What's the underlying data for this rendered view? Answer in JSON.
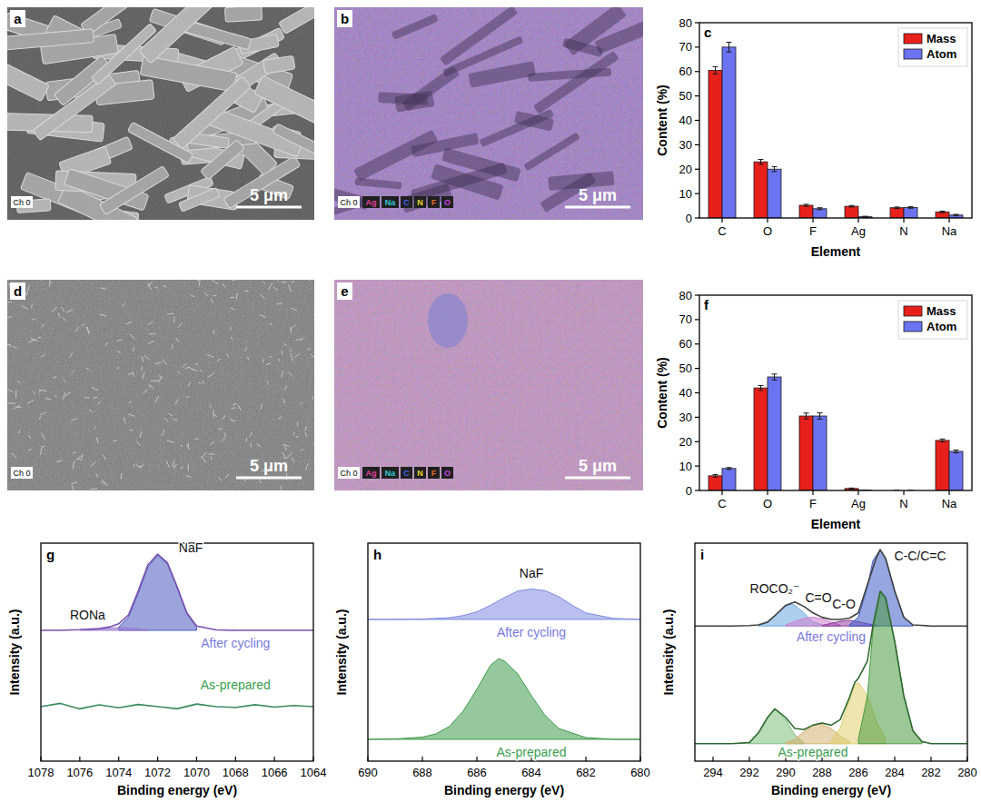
{
  "chart_data": [
    {
      "type": "image",
      "panel": "a",
      "channel": "Ch 0",
      "scale_bar": "5 μm"
    },
    {
      "type": "image",
      "panel": "b",
      "channel": "Ch 0",
      "scale_bar": "5 μm",
      "elements": [
        {
          "name": "Ag",
          "color": "#e0409a"
        },
        {
          "name": "Na",
          "color": "#30c8d8"
        },
        {
          "name": "C",
          "color": "#4060f0"
        },
        {
          "name": "N",
          "color": "#e8d820"
        },
        {
          "name": "F",
          "color": "#f06a20"
        },
        {
          "name": "O",
          "color": "#d040e0"
        }
      ]
    },
    {
      "type": "bar",
      "panel": "c",
      "x_label": "Element",
      "y_label": "Content (%)",
      "categories": [
        "C",
        "O",
        "F",
        "Ag",
        "N",
        "Na"
      ],
      "series": [
        {
          "name": "Mass",
          "color": "#e8201c",
          "values": [
            60.5,
            23,
            5.2,
            4.8,
            4.2,
            2.5
          ],
          "errors": [
            1.5,
            1,
            0.4,
            0.3,
            0.3,
            0.3
          ]
        },
        {
          "name": "Atom",
          "color": "#6b73f0",
          "values": [
            70,
            20,
            3.8,
            0.5,
            4.3,
            1.2
          ],
          "errors": [
            2,
            1,
            0.4,
            0.2,
            0.3,
            0.3
          ]
        }
      ],
      "ylim": [
        0,
        80
      ],
      "yticks": [
        0,
        10,
        20,
        30,
        40,
        50,
        60,
        70,
        80
      ],
      "legend": "top-right"
    },
    {
      "type": "image",
      "panel": "d",
      "channel": "Ch 0",
      "scale_bar": "5 μm"
    },
    {
      "type": "image",
      "panel": "e",
      "channel": "Ch 0",
      "scale_bar": "5 μm",
      "elements": [
        {
          "name": "Ag",
          "color": "#e0409a"
        },
        {
          "name": "Na",
          "color": "#30c8d8"
        },
        {
          "name": "C",
          "color": "#4060f0"
        },
        {
          "name": "N",
          "color": "#e8d820"
        },
        {
          "name": "F",
          "color": "#f06a20"
        },
        {
          "name": "O",
          "color": "#d040e0"
        }
      ]
    },
    {
      "type": "bar",
      "panel": "f",
      "x_label": "Element",
      "y_label": "Content (%)",
      "categories": [
        "C",
        "O",
        "F",
        "Ag",
        "N",
        "Na"
      ],
      "series": [
        {
          "name": "Mass",
          "color": "#e8201c",
          "values": [
            6,
            42,
            30.5,
            0.8,
            0,
            20.5
          ],
          "errors": [
            0.5,
            1,
            1.2,
            0.2,
            0,
            0.6
          ]
        },
        {
          "name": "Atom",
          "color": "#6b73f0",
          "values": [
            9,
            46.5,
            30.5,
            0.1,
            0,
            16
          ],
          "errors": [
            0.4,
            1.2,
            1.3,
            0.1,
            0,
            0.6
          ]
        }
      ],
      "ylim": [
        0,
        80
      ],
      "yticks": [
        0,
        10,
        20,
        30,
        40,
        50,
        60,
        70,
        80
      ],
      "legend": "top-right"
    },
    {
      "type": "line",
      "panel": "g",
      "x_label": "Binding energy (eV)",
      "y_label": "Intensity (a.u.)",
      "xlim": [
        1078,
        1064
      ],
      "xticks": [
        1078,
        1076,
        1074,
        1072,
        1070,
        1068,
        1066,
        1064
      ],
      "ylim": [
        0,
        100
      ],
      "yticks": [],
      "tick_labels": "x",
      "series": [
        {
          "type": "area",
          "color": "#4a5ac0",
          "base": 60,
          "x": [
            1074,
            1073.5,
            1073,
            1072.5,
            1072,
            1071.5,
            1071,
            1070.5,
            1070
          ],
          "values": [
            61.5,
            66,
            77,
            89,
            94.5,
            90.5,
            79.5,
            67.5,
            61.5
          ]
        },
        {
          "type": "area",
          "color": "#9a7ad0",
          "base": 60,
          "x": [
            1076,
            1075,
            1074.5,
            1074,
            1073.5,
            1073,
            1072.5
          ],
          "values": [
            60.2,
            60.6,
            61,
            61.3,
            61,
            60.6,
            60.2
          ]
        },
        {
          "type": "line",
          "color": "#7a4fb0",
          "x": [
            1078,
            1077,
            1076,
            1075,
            1074.5,
            1074,
            1073.5,
            1073,
            1072.5,
            1072,
            1071.5,
            1071,
            1070.5,
            1070,
            1069,
            1068,
            1067,
            1066,
            1065,
            1064
          ],
          "values": [
            60,
            60,
            60.3,
            60.8,
            61.5,
            63,
            67,
            78,
            90,
            95,
            91,
            80,
            68,
            62,
            60.2,
            60,
            60,
            60,
            60,
            60
          ]
        },
        {
          "type": "line",
          "color": "#3a8a60",
          "x": [
            1078,
            1077,
            1076,
            1075,
            1074,
            1073,
            1072,
            1071,
            1070,
            1069,
            1068,
            1067,
            1066,
            1065,
            1064
          ],
          "values": [
            25,
            26.5,
            24,
            25.8,
            24.5,
            26,
            25,
            24,
            26.2,
            25,
            24.6,
            25.9,
            24.8,
            25.5,
            25
          ]
        }
      ],
      "annotations": [
        {
          "text": "NaF",
          "x": 1070.3,
          "y": 96
        },
        {
          "text": "RONa",
          "x": 1075.6,
          "y": 65
        },
        {
          "text": "After cycling",
          "x": 1068,
          "y": 52,
          "color": "#7a7ae0"
        },
        {
          "text": "As-prepared",
          "x": 1068,
          "y": 33,
          "color": "#3aa050"
        }
      ]
    },
    {
      "type": "line",
      "panel": "h",
      "x_label": "Binding energy (eV)",
      "y_label": "Intensity (a.u.)",
      "xlim": [
        690,
        680
      ],
      "xticks": [
        690,
        688,
        686,
        684,
        682,
        680
      ],
      "ylim": [
        0,
        100
      ],
      "yticks": [],
      "tick_labels": "x",
      "series": [
        {
          "type": "area",
          "color": "#7f8be0",
          "base": 65,
          "x": [
            690,
            689,
            688,
            687,
            686.5,
            686,
            685.5,
            685,
            684.5,
            684,
            683.5,
            683,
            682.5,
            682,
            681,
            680
          ],
          "values": [
            65,
            65,
            65.2,
            65.8,
            66.8,
            68.5,
            71.5,
            75,
            78,
            79,
            78.2,
            75.5,
            71.5,
            68,
            65.5,
            65
          ]
        },
        {
          "type": "area",
          "color": "#3f9a4c",
          "base": 10,
          "x": [
            690,
            689,
            688,
            687.5,
            687,
            686.5,
            686,
            685.5,
            685.2,
            685,
            684.5,
            684,
            683.5,
            683,
            682,
            681,
            680
          ],
          "values": [
            10,
            10.2,
            11,
            12.5,
            16,
            23,
            33,
            44,
            47,
            46,
            40,
            30,
            21,
            15,
            10.8,
            10,
            10
          ]
        }
      ],
      "annotations": [
        {
          "text": "NaF",
          "x": 684,
          "y": 84
        },
        {
          "text": "After cycling",
          "x": 684,
          "y": 57,
          "color": "#7a7ae0"
        },
        {
          "text": "As-prepared",
          "x": 684,
          "y": 2,
          "color": "#3aa050"
        }
      ]
    },
    {
      "type": "line",
      "panel": "i",
      "x_label": "Binding energy (eV)",
      "y_label": "Intensity (a.u.)",
      "xlim": [
        295,
        280
      ],
      "xticks": [
        294,
        292,
        290,
        288,
        286,
        284,
        282,
        280
      ],
      "ylim": [
        0,
        100
      ],
      "yticks": [],
      "tick_labels": "x",
      "series": [
        {
          "type": "area",
          "color": "#6aa8e0",
          "base": 62,
          "x": [
            291.5,
            291,
            290.5,
            290,
            289.7,
            289.5,
            289,
            288.5,
            288
          ],
          "values": [
            62.3,
            63.5,
            67,
            71,
            72,
            71.5,
            68,
            64,
            62.5
          ]
        },
        {
          "type": "area",
          "color": "#d080d0",
          "base": 62,
          "x": [
            290,
            289.5,
            289,
            288.5,
            288,
            287.5,
            287
          ],
          "values": [
            62.5,
            64,
            65.5,
            66,
            65.3,
            63.8,
            62.5
          ]
        },
        {
          "type": "area",
          "color": "#9040a0",
          "base": 62,
          "x": [
            288,
            287.5,
            287,
            286.5,
            286,
            285.5,
            285
          ],
          "values": [
            62.3,
            63.2,
            64.2,
            64.5,
            64,
            63,
            62.3
          ]
        },
        {
          "type": "area",
          "color": "#3f5cc8",
          "base": 62,
          "x": [
            286.5,
            286,
            285.5,
            285.2,
            284.8,
            284.5,
            284,
            283.5,
            283
          ],
          "values": [
            62.5,
            66,
            80,
            92,
            97,
            93,
            78,
            66,
            62.5
          ]
        },
        {
          "type": "line",
          "color": "#404040",
          "x": [
            295,
            294,
            293,
            292,
            291.5,
            291,
            290.5,
            290,
            289.5,
            289,
            288.5,
            288,
            287.5,
            287,
            286.5,
            286,
            285.5,
            285,
            284.8,
            284.5,
            284,
            283.5,
            283,
            282,
            281,
            280
          ],
          "values": [
            62,
            62,
            62,
            62.2,
            62.5,
            63.8,
            67.5,
            71.5,
            73,
            71,
            68,
            66,
            65,
            65,
            65.5,
            68,
            81,
            93.5,
            97,
            93,
            78,
            66,
            62.5,
            62,
            62,
            62
          ]
        },
        {
          "type": "area",
          "color": "#7cc07c",
          "base": 8,
          "x": [
            292,
            291.5,
            291,
            290.6,
            290,
            289.5,
            289
          ],
          "values": [
            8.5,
            13,
            20,
            24,
            19,
            12,
            8.5
          ]
        },
        {
          "type": "area",
          "color": "#d4b070",
          "base": 8,
          "x": [
            290,
            289.5,
            289,
            288.5,
            288.2,
            288,
            287.5,
            287,
            286.5
          ],
          "values": [
            8.5,
            10,
            13.5,
            16.5,
            17,
            16.8,
            15,
            11.5,
            9
          ]
        },
        {
          "type": "area",
          "color": "#e0d070",
          "base": 8,
          "x": [
            287.5,
            287,
            286.5,
            286.2,
            286,
            285.5,
            285,
            284.5
          ],
          "values": [
            9,
            15,
            28,
            35,
            36,
            30,
            18,
            10
          ]
        },
        {
          "type": "area",
          "color": "#4a9a40",
          "base": 8,
          "x": [
            286,
            285.5,
            285.2,
            284.8,
            284.5,
            284,
            283.5,
            283,
            282.5
          ],
          "values": [
            10,
            30,
            60,
            77,
            74,
            55,
            30,
            14,
            9
          ]
        },
        {
          "type": "line",
          "color": "#2f6a30",
          "x": [
            295,
            294,
            293,
            292,
            291.5,
            291,
            290.6,
            290,
            289.5,
            289,
            288.5,
            288,
            287.5,
            287,
            286.5,
            286.2,
            286,
            285.5,
            285.2,
            284.8,
            284.5,
            284,
            283.5,
            283,
            282.5,
            282,
            281,
            280
          ],
          "values": [
            8,
            8,
            8,
            8.5,
            13,
            20,
            24,
            20,
            15,
            14.5,
            16.5,
            17.5,
            16.5,
            19,
            29,
            36,
            38,
            46,
            62,
            78,
            75,
            55,
            30,
            14,
            9,
            8,
            8,
            8
          ]
        }
      ],
      "annotations": [
        {
          "text": "ROCO₂⁻",
          "x": 290.6,
          "y": 77
        },
        {
          "text": "C=O",
          "x": 288.2,
          "y": 73
        },
        {
          "text": "C-O",
          "x": 286.8,
          "y": 70
        },
        {
          "text": "C-C/C=C",
          "x": 282.6,
          "y": 92
        },
        {
          "text": "After cycling",
          "x": 287.5,
          "y": 55,
          "color": "#7a7ae0"
        },
        {
          "text": "As-prepared",
          "x": 288.5,
          "y": 2,
          "color": "#3aa050"
        }
      ]
    }
  ]
}
